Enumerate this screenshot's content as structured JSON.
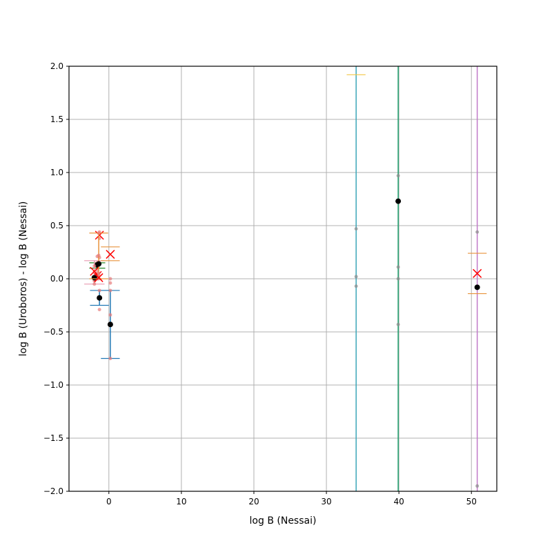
{
  "chart_data": {
    "type": "scatter",
    "title": "",
    "xlabel": "log B (Nessai)",
    "ylabel": "log B (Uroboros) - log B (Nessai)",
    "xlim": [
      -5.5,
      53.5
    ],
    "ylim": [
      -2.0,
      2.0
    ],
    "grid": true,
    "x_ticks": [
      0,
      10,
      20,
      30,
      40,
      50
    ],
    "x_tick_labels": [
      "0",
      "10",
      "20",
      "30",
      "40",
      "50"
    ],
    "y_ticks": [
      -2.0,
      -1.5,
      -1.0,
      -0.5,
      0.0,
      0.5,
      1.0,
      1.5,
      2.0
    ],
    "y_tick_labels": [
      "−2.0",
      "−1.5",
      "−1.0",
      "−0.5",
      "0.0",
      "0.5",
      "1.0",
      "1.5",
      "2.0"
    ],
    "colors": {
      "mean_marker": "#000000",
      "median_marker": "#ff0000",
      "sample_points": "#8c8c8c",
      "low_sample_points": "#e77c7c",
      "orange": "#e8923a",
      "teal": "#3aa6b8",
      "green": "#1a9e6a",
      "purple": "#c079c9",
      "blue": "#1f77b4",
      "gold": "#f2c744",
      "pink": "#e89ab0",
      "darkgreen": "#2a8a2a"
    },
    "series": [
      {
        "x": 0.2,
        "mean": -0.43,
        "median": 0.23,
        "color": "blue",
        "err_low": -0.75,
        "err_high": -0.11,
        "whisker_half_width": 1.3,
        "samples": [
          -0.11,
          -0.34,
          -0.43,
          -0.75,
          0.0,
          -0.04
        ]
      },
      {
        "x": -1.3,
        "mean": -0.18,
        "median": 0.41,
        "color": "blue",
        "err_low": -0.25,
        "err_high": -0.11,
        "whisker_half_width": 1.3,
        "samples": [
          -0.29,
          -0.11,
          0.44,
          0.38,
          0.2
        ]
      },
      {
        "x": -1.6,
        "mean": 0.13,
        "median": 0.03,
        "color": "darkgreen",
        "err_low": 0.1,
        "err_high": 0.15,
        "whisker_half_width": 1.1,
        "samples": [
          0.21,
          0.15,
          0.08,
          0.05,
          0.0
        ]
      },
      {
        "x": -2.0,
        "mean": 0.01,
        "median": 0.07,
        "color": "pink",
        "err_low": -0.05,
        "err_high": 0.17,
        "whisker_half_width": 1.4,
        "samples": [
          0.12,
          0.06,
          0.02,
          -0.02,
          -0.05
        ]
      },
      {
        "x": -1.4,
        "mean": 0.14,
        "median": 0.01,
        "color": "orange",
        "err_low": 0.0,
        "err_high": 0.43,
        "whisker_half_width": 1.3,
        "samples": [
          0.43,
          0.22,
          0.05,
          0.03,
          0.0
        ]
      },
      {
        "x": 34.1,
        "mean": null,
        "median": null,
        "color": "teal",
        "err_low": -2.0,
        "err_high": 2.0,
        "whisker_half_width": 1.3,
        "samples": [
          0.47,
          0.02,
          -0.07
        ]
      },
      {
        "x": 39.9,
        "mean": 0.73,
        "median": null,
        "color": "green",
        "err_low": -2.0,
        "err_high": 2.0,
        "whisker_half_width": 0,
        "samples": [
          0.97,
          0.11,
          0.0,
          -0.43
        ]
      },
      {
        "x": 50.8,
        "mean": -0.08,
        "median": 0.05,
        "color": "purple",
        "err_low": -2.0,
        "err_high": 2.0,
        "whisker_half_width": 0,
        "samples": [
          0.44,
          -1.95
        ]
      }
    ],
    "extra_whiskers": [
      {
        "x": 34.1,
        "y": 1.92,
        "half_width": 1.3,
        "color": "gold"
      },
      {
        "x": 50.8,
        "y": 0.24,
        "half_width": 1.3,
        "color": "orange"
      },
      {
        "x": 50.8,
        "y": -0.14,
        "half_width": 1.3,
        "color": "orange"
      },
      {
        "x": 0.2,
        "y": 0.3,
        "half_width": 1.3,
        "color": "orange"
      },
      {
        "x": 0.2,
        "y": 0.17,
        "half_width": 1.3,
        "color": "orange"
      }
    ]
  }
}
